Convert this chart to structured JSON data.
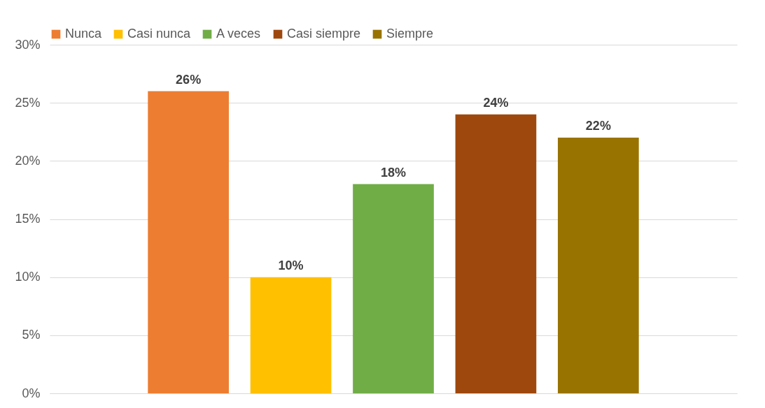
{
  "chart_data": {
    "type": "bar",
    "categories": [
      null
    ],
    "series": [
      {
        "name": "Nunca",
        "color": "#ed7d31",
        "values": [
          26
        ],
        "value_labels": [
          "26%"
        ]
      },
      {
        "name": "Casi nunca",
        "color": "#ffc000",
        "values": [
          10
        ],
        "value_labels": [
          "10%"
        ]
      },
      {
        "name": "A veces",
        "color": "#70ad47",
        "values": [
          18
        ],
        "value_labels": [
          "18%"
        ]
      },
      {
        "name": "Casi siempre",
        "color": "#9e480e",
        "values": [
          24
        ],
        "value_labels": [
          "24%"
        ]
      },
      {
        "name": "Siempre",
        "color": "#997300",
        "values": [
          22
        ],
        "value_labels": [
          "22%"
        ]
      }
    ],
    "ylim": [
      0,
      30
    ],
    "yticks": [
      {
        "value": 0,
        "label": "0%"
      },
      {
        "value": 5,
        "label": "5%"
      },
      {
        "value": 10,
        "label": "10%"
      },
      {
        "value": 15,
        "label": "15%"
      },
      {
        "value": 20,
        "label": "20%"
      },
      {
        "value": 25,
        "label": "25%"
      },
      {
        "value": 30,
        "label": "30%"
      }
    ],
    "grid": "y",
    "legend": "top"
  }
}
